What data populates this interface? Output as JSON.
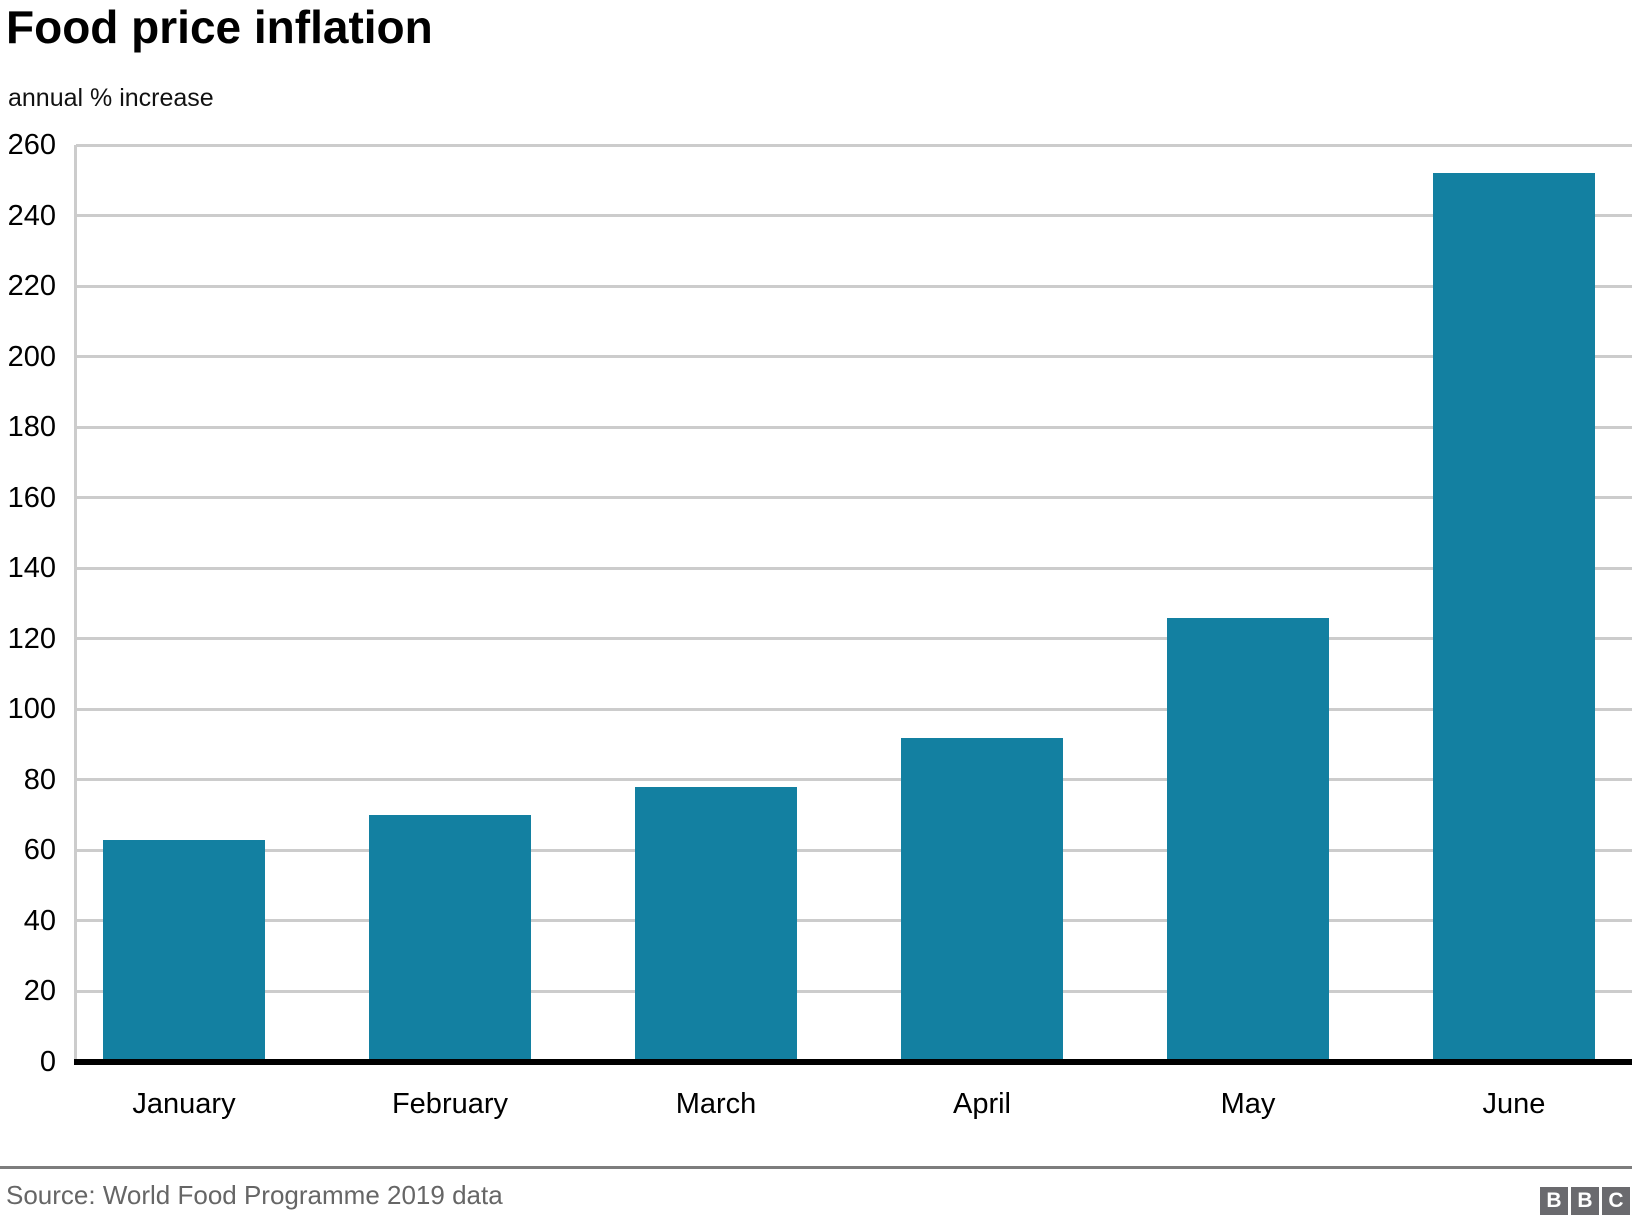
{
  "header": {
    "title": "Food price inflation",
    "subtitle": "annual % increase"
  },
  "chart_data": {
    "type": "bar",
    "title": "Food price inflation",
    "subtitle_unit_label": "annual % increase",
    "categories": [
      "January",
      "February",
      "March",
      "April",
      "May",
      "June"
    ],
    "values": [
      63,
      70,
      78,
      92,
      126,
      252
    ],
    "xlabel": "",
    "ylabel": "annual % increase",
    "ylim": [
      0,
      260
    ],
    "ytick_step": 20,
    "yticks": [
      0,
      20,
      40,
      60,
      80,
      100,
      120,
      140,
      160,
      180,
      200,
      220,
      240,
      260
    ],
    "grid": true,
    "legend": "none",
    "bar_color": "#1380A1",
    "gridline_color": "#cccccc",
    "axis_line_color": "#000000"
  },
  "footer": {
    "source": "Source: World Food Programme 2019 data",
    "divider_color": "#7d7d7d",
    "logo_letters": [
      "B",
      "B",
      "C"
    ],
    "logo_square_color": "#6a6a6e"
  }
}
